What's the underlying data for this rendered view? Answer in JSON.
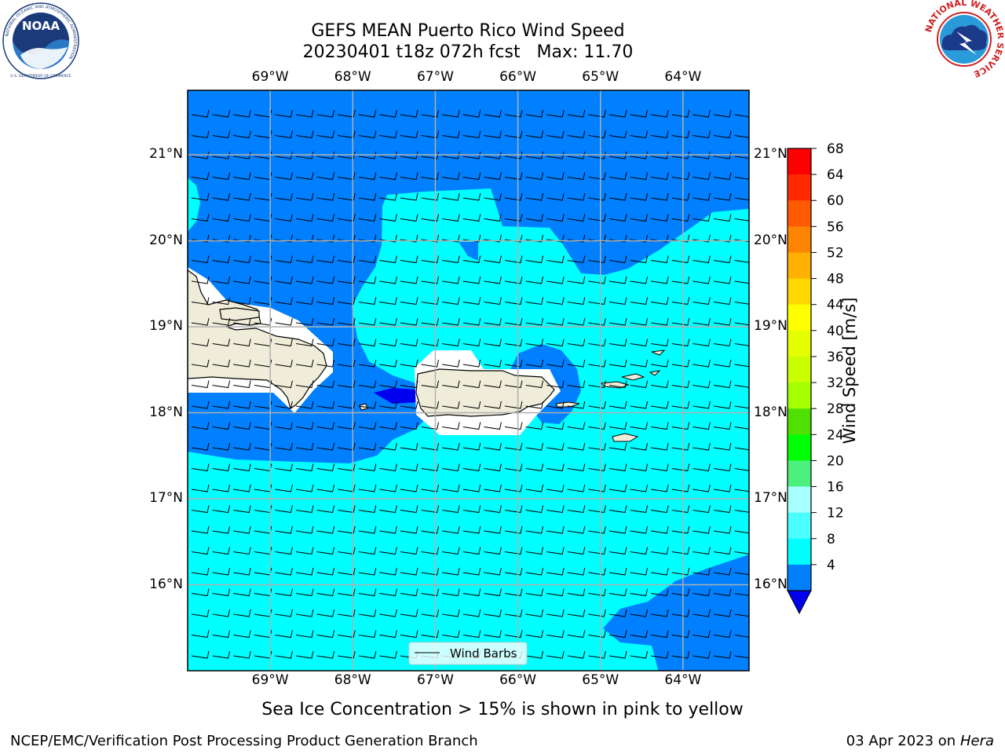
{
  "header": {
    "title_line1": "GEFS MEAN Puerto Rico Wind Speed",
    "title_line2": "20230401 t18z 072h fcst   Max: 11.70"
  },
  "logos": {
    "left": {
      "name": "NOAA",
      "ring_text": "NATIONAL OCEANIC AND ATMOSPHERIC ADMINISTRATION",
      "bottom_text": "U.S. DEPARTMENT OF COMMERCE"
    },
    "right": {
      "ring_text": "NATIONAL WEATHER SERVICE"
    }
  },
  "map": {
    "lon_labels": [
      "69°W",
      "68°W",
      "67°W",
      "66°W",
      "65°W",
      "64°W"
    ],
    "lat_labels": [
      "21°N",
      "20°N",
      "19°N",
      "18°N",
      "17°N",
      "16°N"
    ],
    "lon_range": [
      -70.0,
      -63.2
    ],
    "lat_range": [
      15.0,
      21.75
    ],
    "legend_label": "Wind Barbs",
    "colors": {
      "land": "#efedd9",
      "bin_4_8": "#0080ff",
      "bin_8_12": "#00ffff",
      "below_4": "#0000ee",
      "no_data": "#ffffff",
      "grid": "#b0b0b0"
    }
  },
  "colorbar": {
    "label": "Wind Speed [m/s]",
    "ticks": [
      "68",
      "64",
      "60",
      "56",
      "52",
      "48",
      "44",
      "40",
      "36",
      "32",
      "28",
      "24",
      "20",
      "16",
      "12",
      "8",
      "4"
    ],
    "colors": [
      "#ff0000",
      "#ff2a00",
      "#ff5a00",
      "#ff8400",
      "#ffb000",
      "#ffd800",
      "#ffff00",
      "#e6ff00",
      "#caff00",
      "#a4ff00",
      "#50e000",
      "#00ff00",
      "#4cf07e",
      "#a8ffff",
      "#4cffff",
      "#00ffff",
      "#0080ff"
    ],
    "extend_color": "#0000ee"
  },
  "footer": {
    "note": "Sea Ice Concentration > 15% is shown in pink to yellow",
    "left": "NCEP/EMC/Verification Post Processing Product Generation Branch",
    "right_prefix": "03 Apr 2023 on",
    "right_machine": "Hera"
  }
}
